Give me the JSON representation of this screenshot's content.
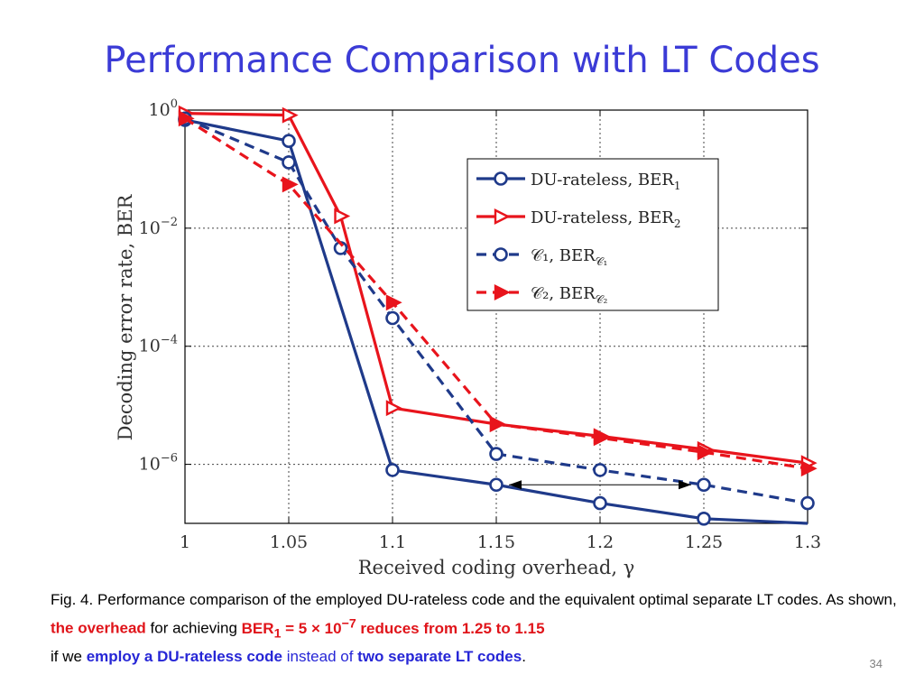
{
  "slide": {
    "title": "Performance Comparison with LT Codes",
    "number": "34"
  },
  "caption": {
    "p1": "Fig. 4. Performance comparison of the employed DU-rateless code and the equivalent optimal separate LT codes. As shown, ",
    "overhead": "the overhead",
    "p2": " for achieving ",
    "ber": "BER",
    "ber_sub": "1",
    "ber_eq": " = 5 × 10",
    "ber_exp": "−7",
    "reduces": " reduces from 1.25 to 1.15",
    "p3": "if we ",
    "employ": "employ a DU-rateless code",
    "instead": " instead of ",
    "separate": "two separate LT codes",
    "end": "."
  },
  "chart_data": {
    "type": "line",
    "xlabel": "Received coding overhead, γ",
    "ylabel": "Decoding error rate,  BER",
    "xlim": [
      1.0,
      1.3
    ],
    "ylim": [
      1e-07,
      1.0
    ],
    "yscale": "log",
    "grid": true,
    "x_ticks": [
      "1",
      "1.05",
      "1.1",
      "1.15",
      "1.2",
      "1.25",
      "1.3"
    ],
    "y_ticks": [
      {
        "base": "10",
        "exp": "0"
      },
      {
        "base": "10",
        "exp": "−2"
      },
      {
        "base": "10",
        "exp": "−4"
      },
      {
        "base": "10",
        "exp": "−6"
      }
    ],
    "legend_position": "top-right",
    "series": [
      {
        "name": "DU-rateless, BER",
        "sub": "1",
        "color": "#1f3a8a",
        "dash": false,
        "marker": "circle",
        "x": [
          1.0,
          1.05,
          1.1,
          1.15,
          1.2,
          1.25,
          1.3
        ],
        "y": [
          0.68,
          0.3,
          8e-07,
          4.5e-07,
          2.2e-07,
          1.2e-07,
          8e-08
        ]
      },
      {
        "name": "DU-rateless, BER",
        "sub": "2",
        "color": "#e8141c",
        "dash": false,
        "marker": "triangle-right",
        "x": [
          1.0,
          1.05,
          1.075,
          1.1,
          1.15,
          1.2,
          1.25,
          1.3
        ],
        "y": [
          0.88,
          0.82,
          0.016,
          9e-06,
          4.8e-06,
          3e-06,
          1.8e-06,
          1.05e-06
        ]
      },
      {
        "name": "𝒞₁, BER",
        "sub": "𝒞₁",
        "color": "#1f3a8a",
        "dash": true,
        "marker": "circle",
        "x": [
          1.0,
          1.05,
          1.075,
          1.1,
          1.15,
          1.2,
          1.25,
          1.3
        ],
        "y": [
          0.72,
          0.13,
          0.0046,
          0.0003,
          1.5e-06,
          8e-07,
          4.5e-07,
          2.2e-07
        ]
      },
      {
        "name": "𝒞₂, BER",
        "sub": "𝒞₂",
        "color": "#e8141c",
        "dash": true,
        "marker": "triangle-right-filled",
        "x": [
          1.0,
          1.05,
          1.1,
          1.15,
          1.2,
          1.25,
          1.3
        ],
        "y": [
          0.72,
          0.055,
          0.00055,
          4.8e-06,
          2.8e-06,
          1.6e-06,
          8.5e-07
        ]
      }
    ],
    "annotation": {
      "type": "double-arrow",
      "x_from": 1.15,
      "x_to": 1.25,
      "y": 4.5e-07
    }
  }
}
